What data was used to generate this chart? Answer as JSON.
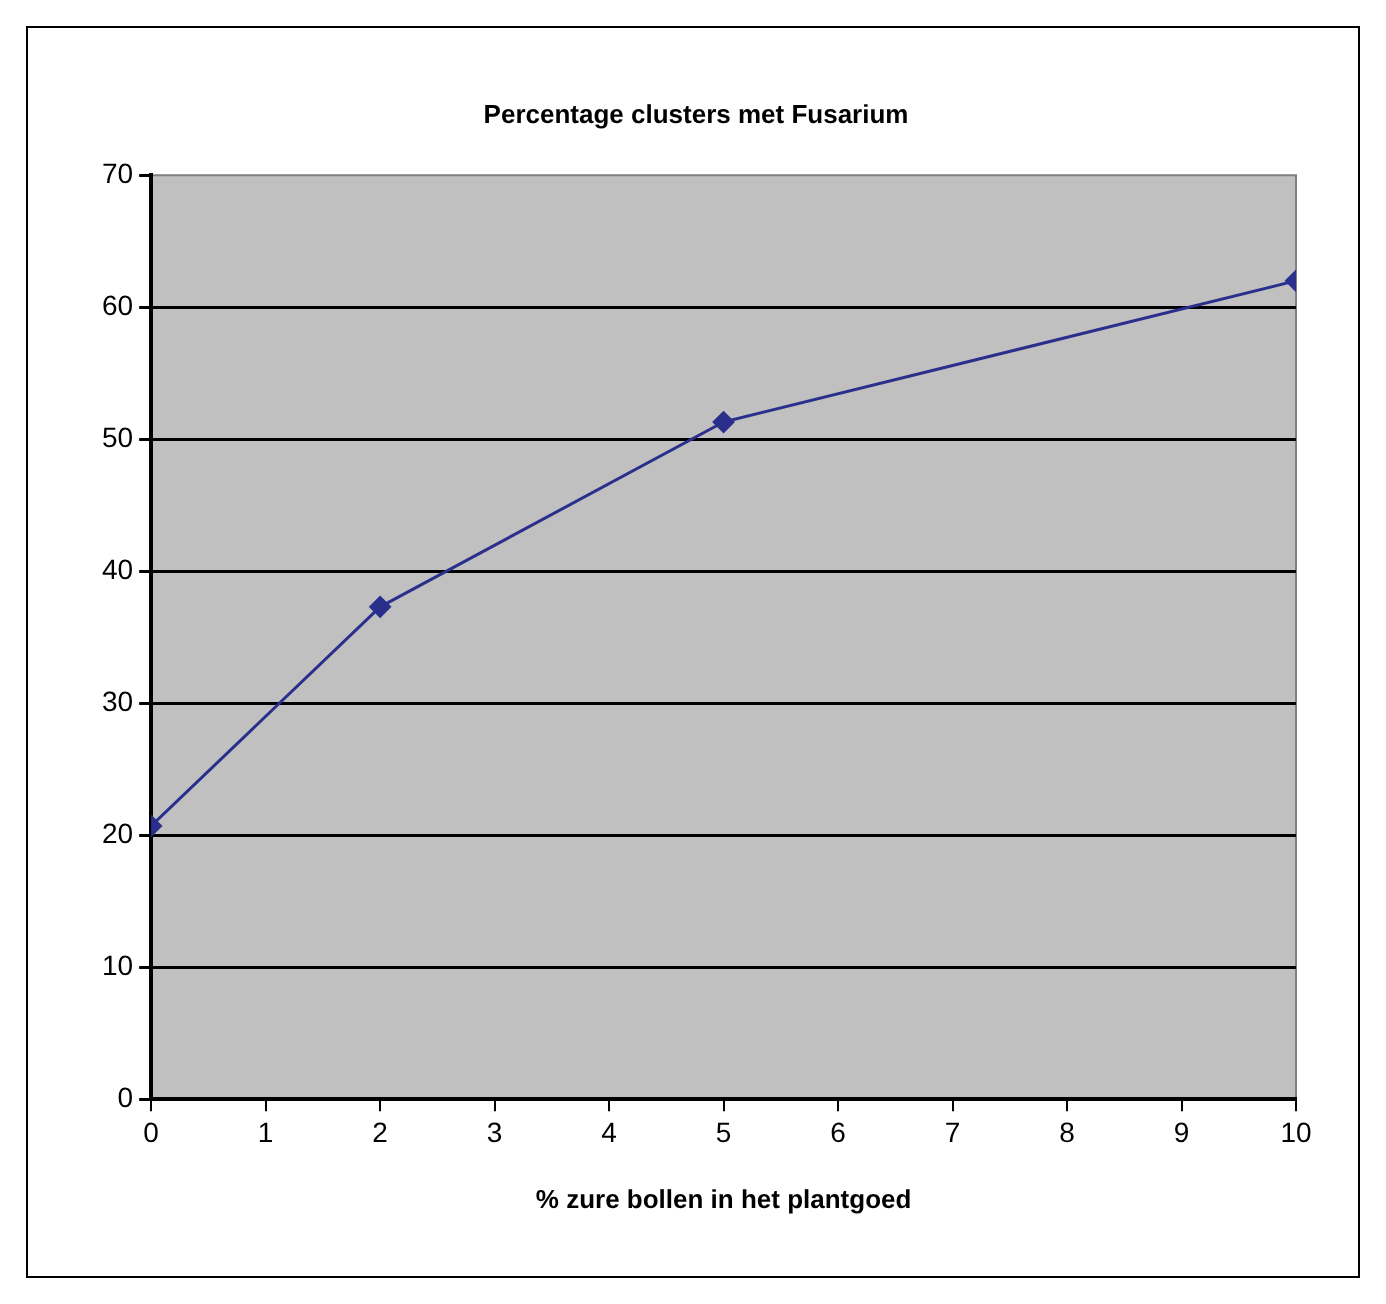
{
  "chart_data": {
    "type": "line",
    "title": "Percentage clusters met Fusarium",
    "xlabel": "% zure bollen in het plantgoed",
    "x": [
      0,
      2,
      5,
      10
    ],
    "series": [
      {
        "color": "#2b2f8c",
        "values": [
          20.7,
          37.3,
          51.3,
          62.0
        ]
      }
    ],
    "xlim": [
      0,
      10
    ],
    "xticks": [
      0,
      1,
      2,
      3,
      4,
      5,
      6,
      7,
      8,
      9,
      10
    ],
    "ylim": [
      0,
      70
    ],
    "yticks": [
      0,
      10,
      20,
      30,
      40,
      50,
      60,
      70
    ],
    "grid": "y",
    "marker": "diamond",
    "line_style": "solid",
    "legend": false
  }
}
